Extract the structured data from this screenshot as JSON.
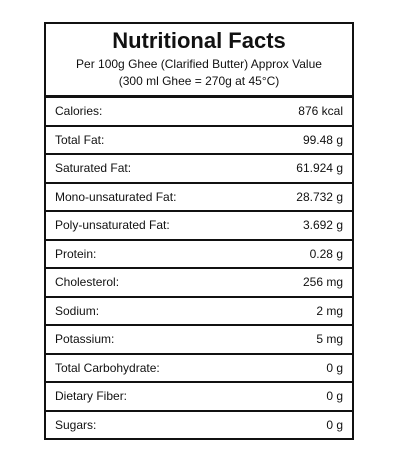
{
  "header": {
    "title": "Nutritional Facts",
    "subtitle": "Per 100g Ghee (Clarified Butter) Approx Value",
    "note": "(300 ml Ghee = 270g at 45°C)"
  },
  "table": {
    "rows": [
      [
        "Calories:",
        "876 kcal"
      ],
      [
        "Total Fat:",
        "99.48 g"
      ],
      [
        "Saturated Fat:",
        "61.924 g"
      ],
      [
        "Mono-unsaturated Fat:",
        "28.732 g"
      ],
      [
        "Poly-unsaturated Fat:",
        "3.692 g"
      ],
      [
        "Protein:",
        "0.28 g"
      ],
      [
        "Cholesterol:",
        "256 mg"
      ],
      [
        "Sodium:",
        "2 mg"
      ],
      [
        "Potassium:",
        "5 mg"
      ],
      [
        "Total Carbohydrate:",
        "0 g"
      ],
      [
        "Dietary Fiber:",
        "0 g"
      ],
      [
        "Sugars:",
        "0 g"
      ]
    ]
  }
}
